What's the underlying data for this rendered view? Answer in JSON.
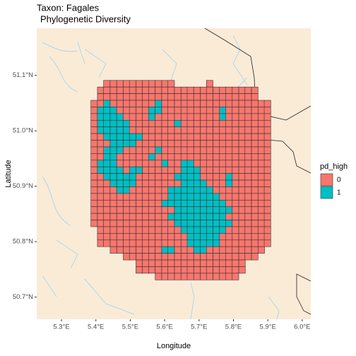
{
  "chart_data": {
    "type": "tile",
    "title": "Taxon: Fagales",
    "subtitle": "Phylogenetic Diversity",
    "x_label": "Longitude",
    "y_label": "Latitude",
    "legend_title": "pd_high",
    "legend": [
      {
        "label": "0",
        "color": "#f8766d"
      },
      {
        "label": "1",
        "color": "#00bfc4"
      }
    ],
    "xlim": [
      5.228,
      6.025
    ],
    "ylim": [
      50.66,
      51.185
    ],
    "xticks": [
      {
        "value": 5.3,
        "label": "5.3°E"
      },
      {
        "value": 5.4,
        "label": "5.4°E"
      },
      {
        "value": 5.5,
        "label": "5.5°E"
      },
      {
        "value": 5.6,
        "label": "5.6°E"
      },
      {
        "value": 5.7,
        "label": "5.7°E"
      },
      {
        "value": 5.8,
        "label": "5.8°E"
      },
      {
        "value": 5.9,
        "label": "5.9°E"
      },
      {
        "value": 6.0,
        "label": "6.0°E"
      }
    ],
    "yticks": [
      {
        "value": 50.7,
        "label": "50.7°N"
      },
      {
        "value": 50.8,
        "label": "50.8°N"
      },
      {
        "value": 50.9,
        "label": "50.9°N"
      },
      {
        "value": 51.0,
        "label": "51.0°N"
      },
      {
        "value": 51.1,
        "label": "51.1°N"
      }
    ],
    "lon": [
      5.395,
      5.414,
      5.432,
      5.451,
      5.47,
      5.489,
      5.507,
      5.526,
      5.545,
      5.563,
      5.582,
      5.601,
      5.619,
      5.638,
      5.657,
      5.675,
      5.694,
      5.713,
      5.731,
      5.75,
      5.769,
      5.787,
      5.806,
      5.825,
      5.843,
      5.862,
      5.881,
      5.899
    ],
    "lat": [
      51.085,
      51.073,
      51.061,
      51.049,
      51.037,
      51.025,
      51.013,
      51.001,
      50.989,
      50.977,
      50.965,
      50.953,
      50.941,
      50.929,
      50.917,
      50.905,
      50.893,
      50.881,
      50.869,
      50.857,
      50.845,
      50.833,
      50.821,
      50.809,
      50.797,
      50.785,
      50.773,
      50.761,
      50.749,
      50.737
    ],
    "cells": [
      [
        null,
        null,
        0,
        0,
        0,
        0,
        0,
        0,
        0,
        0,
        0,
        0,
        0,
        null,
        null,
        null,
        null,
        null,
        0,
        null,
        null,
        null,
        null,
        null,
        null,
        null,
        null,
        null
      ],
      [
        null,
        0,
        0,
        0,
        0,
        0,
        0,
        0,
        0,
        0,
        0,
        0,
        0,
        0,
        0,
        0,
        0,
        0,
        0,
        0,
        0,
        0,
        0,
        0,
        0,
        0,
        null,
        null
      ],
      [
        null,
        0,
        0,
        0,
        0,
        0,
        0,
        0,
        0,
        0,
        0,
        0,
        0,
        0,
        0,
        0,
        0,
        0,
        0,
        0,
        0,
        0,
        0,
        0,
        0,
        0,
        null,
        null
      ],
      [
        0,
        0,
        1,
        0,
        0,
        0,
        0,
        0,
        0,
        0,
        1,
        0,
        0,
        0,
        0,
        0,
        0,
        0,
        0,
        0,
        0,
        0,
        0,
        0,
        0,
        0,
        0,
        0
      ],
      [
        0,
        1,
        1,
        1,
        0,
        0,
        0,
        0,
        0,
        1,
        1,
        0,
        0,
        0,
        0,
        0,
        0,
        0,
        0,
        0,
        1,
        0,
        0,
        0,
        0,
        0,
        0,
        0
      ],
      [
        0,
        1,
        1,
        1,
        1,
        0,
        0,
        0,
        0,
        1,
        0,
        0,
        0,
        0,
        0,
        0,
        0,
        0,
        0,
        0,
        1,
        0,
        0,
        0,
        0,
        0,
        0,
        0
      ],
      [
        0,
        1,
        1,
        1,
        1,
        1,
        0,
        0,
        0,
        0,
        0,
        0,
        0,
        1,
        0,
        0,
        0,
        0,
        0,
        0,
        0,
        0,
        0,
        0,
        0,
        0,
        0,
        0
      ],
      [
        0,
        1,
        1,
        1,
        1,
        1,
        0,
        0,
        0,
        0,
        0,
        0,
        0,
        0,
        0,
        0,
        0,
        0,
        0,
        0,
        0,
        0,
        0,
        0,
        0,
        0,
        0,
        0
      ],
      [
        0,
        0,
        1,
        1,
        1,
        1,
        1,
        1,
        0,
        0,
        0,
        0,
        0,
        0,
        0,
        0,
        0,
        0,
        0,
        0,
        0,
        0,
        0,
        0,
        0,
        0,
        0,
        0
      ],
      [
        0,
        0,
        0,
        1,
        1,
        1,
        1,
        0,
        0,
        0,
        0,
        0,
        0,
        0,
        0,
        0,
        0,
        0,
        0,
        0,
        0,
        0,
        0,
        0,
        0,
        0,
        0,
        0
      ],
      [
        0,
        0,
        1,
        1,
        1,
        0,
        0,
        0,
        0,
        0,
        1,
        0,
        0,
        0,
        0,
        0,
        0,
        0,
        0,
        0,
        0,
        0,
        0,
        0,
        0,
        0,
        0,
        0
      ],
      [
        0,
        0,
        1,
        1,
        0,
        0,
        0,
        0,
        0,
        1,
        0,
        0,
        0,
        0,
        0,
        0,
        0,
        0,
        0,
        0,
        0,
        0,
        0,
        0,
        0,
        0,
        0,
        0
      ],
      [
        0,
        1,
        1,
        1,
        0,
        0,
        0,
        0,
        0,
        0,
        0,
        1,
        0,
        0,
        1,
        1,
        0,
        0,
        0,
        0,
        0,
        0,
        0,
        0,
        0,
        0,
        0,
        0
      ],
      [
        0,
        1,
        1,
        1,
        1,
        0,
        1,
        1,
        0,
        0,
        0,
        0,
        0,
        0,
        1,
        1,
        1,
        0,
        0,
        0,
        0,
        0,
        0,
        0,
        0,
        0,
        0,
        0
      ],
      [
        0,
        0,
        1,
        1,
        1,
        1,
        1,
        0,
        0,
        0,
        0,
        0,
        0,
        1,
        1,
        1,
        1,
        0,
        0,
        0,
        0,
        1,
        0,
        0,
        0,
        0,
        0,
        0
      ],
      [
        0,
        0,
        0,
        1,
        1,
        1,
        1,
        0,
        0,
        0,
        0,
        0,
        0,
        0,
        1,
        1,
        1,
        1,
        0,
        0,
        0,
        1,
        0,
        0,
        0,
        0,
        0,
        0
      ],
      [
        0,
        0,
        0,
        0,
        1,
        1,
        0,
        0,
        0,
        0,
        0,
        0,
        1,
        1,
        1,
        1,
        1,
        1,
        1,
        0,
        0,
        0,
        0,
        0,
        0,
        0,
        0,
        0
      ],
      [
        0,
        0,
        0,
        0,
        0,
        0,
        0,
        0,
        0,
        0,
        0,
        0,
        1,
        1,
        1,
        1,
        1,
        1,
        1,
        1,
        0,
        0,
        0,
        0,
        0,
        0,
        0,
        0
      ],
      [
        0,
        0,
        0,
        0,
        0,
        0,
        0,
        0,
        0,
        0,
        0,
        1,
        1,
        1,
        1,
        1,
        1,
        1,
        1,
        1,
        1,
        0,
        0,
        0,
        0,
        0,
        0,
        0
      ],
      [
        0,
        0,
        0,
        0,
        0,
        0,
        0,
        0,
        0,
        0,
        0,
        0,
        0,
        1,
        1,
        1,
        1,
        1,
        1,
        1,
        1,
        1,
        0,
        0,
        0,
        0,
        0,
        0
      ],
      [
        0,
        0,
        0,
        0,
        0,
        0,
        0,
        0,
        0,
        0,
        0,
        0,
        1,
        1,
        1,
        1,
        1,
        1,
        1,
        1,
        1,
        0,
        0,
        0,
        0,
        0,
        0,
        0
      ],
      [
        0,
        0,
        0,
        0,
        0,
        0,
        0,
        0,
        0,
        0,
        0,
        0,
        0,
        1,
        1,
        1,
        1,
        1,
        1,
        1,
        1,
        1,
        0,
        0,
        0,
        0,
        0,
        0
      ],
      [
        null,
        0,
        0,
        0,
        0,
        0,
        0,
        0,
        0,
        0,
        0,
        0,
        0,
        0,
        1,
        1,
        1,
        1,
        1,
        1,
        1,
        0,
        0,
        0,
        0,
        0,
        0,
        0
      ],
      [
        null,
        0,
        0,
        0,
        0,
        0,
        0,
        0,
        0,
        0,
        0,
        0,
        0,
        0,
        0,
        1,
        1,
        1,
        1,
        1,
        0,
        0,
        0,
        0,
        0,
        0,
        0,
        0
      ],
      [
        null,
        0,
        0,
        0,
        0,
        0,
        0,
        0,
        0,
        0,
        0,
        0,
        0,
        0,
        0,
        1,
        1,
        1,
        1,
        1,
        0,
        0,
        0,
        0,
        0,
        0,
        0,
        0
      ],
      [
        null,
        null,
        null,
        0,
        0,
        0,
        0,
        0,
        0,
        0,
        0,
        1,
        1,
        0,
        0,
        0,
        1,
        1,
        0,
        0,
        0,
        0,
        0,
        0,
        0,
        0,
        0,
        null
      ],
      [
        null,
        null,
        null,
        null,
        null,
        0,
        0,
        0,
        0,
        0,
        0,
        0,
        0,
        0,
        0,
        0,
        0,
        0,
        0,
        0,
        0,
        0,
        0,
        0,
        0,
        0,
        null,
        null
      ],
      [
        null,
        null,
        null,
        null,
        null,
        null,
        null,
        0,
        0,
        0,
        0,
        0,
        0,
        0,
        0,
        0,
        0,
        0,
        0,
        0,
        0,
        0,
        0,
        0,
        null,
        null,
        null,
        null
      ],
      [
        null,
        null,
        null,
        null,
        null,
        null,
        null,
        0,
        0,
        0,
        0,
        0,
        0,
        0,
        0,
        0,
        0,
        0,
        0,
        0,
        0,
        0,
        0,
        0,
        null,
        null,
        null,
        null
      ],
      [
        null,
        null,
        null,
        null,
        null,
        null,
        null,
        null,
        null,
        null,
        0,
        0,
        0,
        0,
        0,
        0,
        0,
        0,
        0,
        0,
        0,
        0,
        0,
        null,
        null,
        null,
        null,
        null
      ]
    ]
  }
}
